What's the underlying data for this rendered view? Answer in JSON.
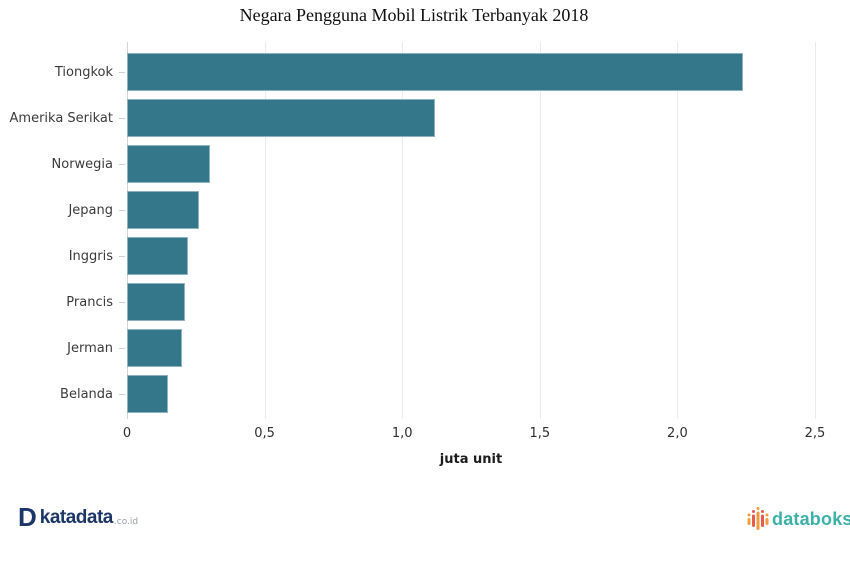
{
  "chart_data": {
    "type": "bar",
    "orientation": "horizontal",
    "title": "Negara Pengguna Mobil Listrik Terbanyak 2018",
    "categories": [
      "Tiongkok",
      "Amerika Serikat",
      "Norwegia",
      "Jepang",
      "Inggris",
      "Prancis",
      "Jerman",
      "Belanda"
    ],
    "values": [
      2.24,
      1.12,
      0.3,
      0.26,
      0.22,
      0.21,
      0.2,
      0.15
    ],
    "xlabel": "juta unit",
    "xlim": [
      0,
      2.5
    ],
    "xticks": [
      "0",
      "0,5",
      "1,0",
      "1,5",
      "2,0",
      "2,5"
    ],
    "grid": true,
    "legend": "none",
    "bar_color": "#34768a",
    "bar_border_color": "#8fb4c1",
    "gridline_color": "#ebebeb",
    "axis_line_color": "#d4d4d4"
  },
  "footer": {
    "katadata": {
      "icon_letter": "D",
      "name": "katadata",
      "suffix": ".co.id",
      "color": "#1c3668"
    },
    "databoks": {
      "name": "databoks",
      "color": "#3db1a8",
      "icon_orange": "#f59b3d",
      "icon_red": "#e65a4f"
    }
  }
}
